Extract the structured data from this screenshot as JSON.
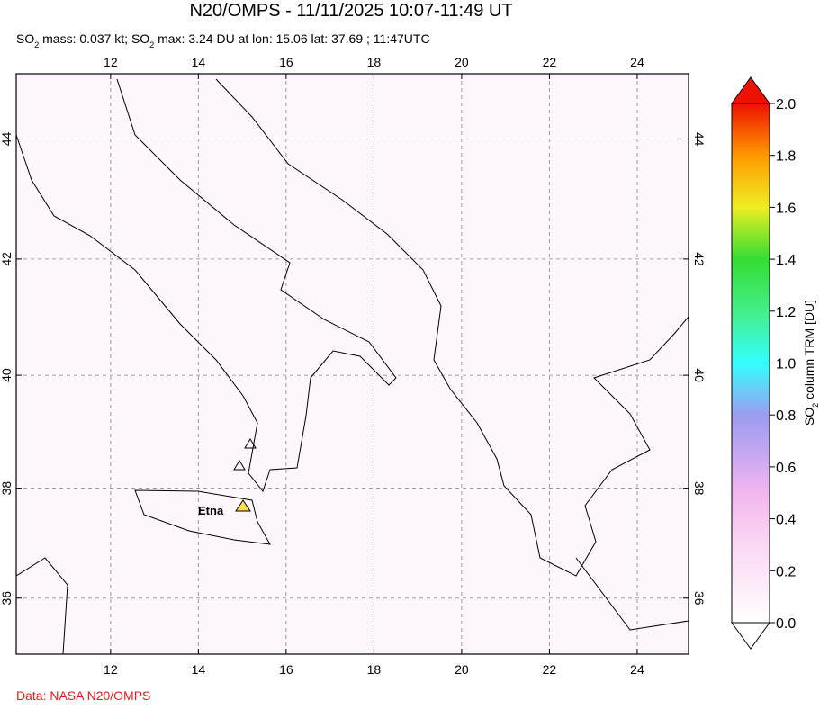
{
  "chart_data": {
    "type": "map",
    "title": "N20/OMPS - 11/11/2025 10:07-11:49 UT",
    "subtitle_parts": [
      "SO",
      "2",
      " mass: 0.037 kt; SO",
      "2",
      " max: 3.24 DU at lon: 15.06 lat: 37.69 ; 11:47UTC"
    ],
    "xlim": [
      9.85,
      25.17
    ],
    "ylim": [
      34.96,
      45.06
    ],
    "xticks": [
      12,
      14,
      16,
      18,
      20,
      22,
      24
    ],
    "yticks": [
      36,
      38,
      40,
      42,
      44
    ],
    "grid": true,
    "volcano_label": "Etna",
    "colorbar": {
      "lim": [
        0,
        2
      ],
      "ticks": [
        {
          "value": 0,
          "label": "0.0"
        },
        {
          "value": 0.2,
          "label": "0.2"
        },
        {
          "value": 0.4,
          "label": "0.4"
        },
        {
          "value": 0.6,
          "label": "0.6"
        },
        {
          "value": 0.8,
          "label": "0.8"
        },
        {
          "value": 1,
          "label": "1.0"
        },
        {
          "value": 1.2,
          "label": "1.2"
        },
        {
          "value": 1.4,
          "label": "1.4"
        },
        {
          "value": 1.6,
          "label": "1.6"
        },
        {
          "value": 1.8,
          "label": "1.8"
        },
        {
          "value": 2,
          "label": "2.0"
        }
      ],
      "label_parts": [
        "SO",
        "2",
        " column TRM [DU]"
      ]
    },
    "credit": "Data: NASA N20/OMPS"
  }
}
